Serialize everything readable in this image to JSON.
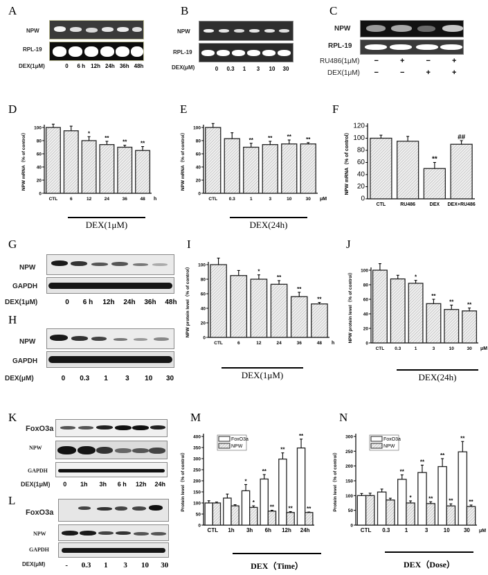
{
  "panels": {
    "A": {
      "letter": "A",
      "rows": [
        "NPW",
        "RPL-19"
      ],
      "treatment": "DEX(1μM)",
      "lanes": [
        "0",
        "6 h",
        "12h",
        "24h",
        "36h",
        "48h"
      ]
    },
    "B": {
      "letter": "B",
      "rows": [
        "NPW",
        "RPL-19"
      ],
      "treatment": "DEX(μM)",
      "lanes": [
        "0",
        "0.3",
        "1",
        "3",
        "10",
        "30"
      ]
    },
    "C": {
      "letter": "C",
      "rows": [
        "NPW",
        "RPL-19"
      ],
      "treatments": [
        {
          "label": "RU486(1μM)",
          "values": [
            "−",
            "+",
            "−",
            "+"
          ]
        },
        {
          "label": "DEX(1μM)",
          "values": [
            "−",
            "−",
            "+",
            "+"
          ]
        }
      ]
    },
    "D": {
      "letter": "D",
      "condition": "DEX(1μM)"
    },
    "E": {
      "letter": "E",
      "condition": "DEX(24h)"
    },
    "F": {
      "letter": "F"
    },
    "G": {
      "letter": "G",
      "rows": [
        "NPW",
        "GAPDH"
      ],
      "treatment": "DEX(1μM)",
      "lanes": [
        "0",
        "6 h",
        "12h",
        "24h",
        "36h",
        "48h"
      ]
    },
    "H": {
      "letter": "H",
      "rows": [
        "NPW",
        "GAPDH"
      ],
      "treatment": "DEX(μM)",
      "lanes": [
        "0",
        "0.3",
        "1",
        "3",
        "10",
        "30"
      ]
    },
    "I": {
      "letter": "I",
      "condition": "DEX(1μM)"
    },
    "J": {
      "letter": "J",
      "condition": "DEX(24h)"
    },
    "K": {
      "letter": "K",
      "rows": [
        "FoxO3a",
        "NPW",
        "GAPDH"
      ],
      "treatment": "DEX(1μM)",
      "lanes": [
        "0",
        "1h",
        "3h",
        "6 h",
        "12h",
        "24h"
      ]
    },
    "L": {
      "letter": "L",
      "rows": [
        "FoxO3a",
        "NPW",
        "GAPDH"
      ],
      "treatment": "DEX(μM)",
      "lanes": [
        "-",
        "0.3",
        "1",
        "3",
        "10",
        "30"
      ]
    },
    "M": {
      "letter": "M",
      "condition": "DEX（Time）"
    },
    "N": {
      "letter": "N",
      "condition": "DEX（Dose）"
    }
  },
  "chart_data": [
    {
      "id": "D",
      "type": "bar",
      "categories": [
        "CTL",
        "6",
        "12",
        "24",
        "36",
        "48"
      ],
      "unit_suffix": "h",
      "values": [
        100,
        95,
        80,
        74,
        70,
        65
      ],
      "errors": [
        5,
        7,
        6,
        5,
        3,
        6
      ],
      "sig": [
        "",
        "",
        "*",
        "**",
        "**",
        "**"
      ],
      "ylabel": "NPW mRNA（% of control）",
      "ylim": [
        0,
        100
      ],
      "yticks": [
        0,
        20,
        40,
        60,
        80,
        100
      ],
      "xlabel": "DEX(1μM)"
    },
    {
      "id": "E",
      "type": "bar",
      "categories": [
        "CTL",
        "0.3",
        "1",
        "3",
        "10",
        "30"
      ],
      "unit_suffix": "μM",
      "values": [
        100,
        83,
        70,
        74,
        75,
        75
      ],
      "errors": [
        6,
        9,
        6,
        5,
        6,
        2
      ],
      "sig": [
        "",
        "",
        "**",
        "**",
        "**",
        "**"
      ],
      "ylabel": "NPW mRNA（% of control）",
      "ylim": [
        0,
        100
      ],
      "yticks": [
        0,
        20,
        40,
        60,
        80,
        100
      ],
      "xlabel": "DEX(24h)"
    },
    {
      "id": "F",
      "type": "bar",
      "categories": [
        "CTL",
        "RU486",
        "DEX",
        "DEX+RU486"
      ],
      "unit_suffix": "",
      "values": [
        100,
        95,
        50,
        90
      ],
      "errors": [
        5,
        8,
        10,
        6
      ],
      "sig": [
        "",
        "",
        "**",
        "##"
      ],
      "ylabel": "NPW mRNA（% of control）",
      "ylim": [
        0,
        120
      ],
      "yticks": [
        0,
        20,
        40,
        60,
        80,
        100,
        120
      ]
    },
    {
      "id": "I",
      "type": "bar",
      "categories": [
        "CTL",
        "6",
        "12",
        "24",
        "36",
        "48"
      ],
      "unit_suffix": "h",
      "values": [
        100,
        85,
        80,
        73,
        56,
        46
      ],
      "errors": [
        9,
        7,
        6,
        5,
        6,
        2
      ],
      "sig": [
        "",
        "",
        "*",
        "**",
        "**",
        "**"
      ],
      "ylabel": "NPW protein level（% of control）",
      "ylim": [
        0,
        100
      ],
      "yticks": [
        0,
        20,
        40,
        60,
        80,
        100
      ],
      "xlabel": "DEX(1μM)"
    },
    {
      "id": "J",
      "type": "bar",
      "categories": [
        "CTL",
        "0.3",
        "1",
        "3",
        "10",
        "30"
      ],
      "unit_suffix": "μM",
      "values": [
        100,
        88,
        82,
        54,
        46,
        44
      ],
      "errors": [
        9,
        5,
        4,
        6,
        6,
        4
      ],
      "sig": [
        "",
        "",
        "*",
        "**",
        "**",
        "**"
      ],
      "ylabel": "NPW protein level（% of control）",
      "ylim": [
        0,
        100
      ],
      "yticks": [
        0,
        20,
        40,
        60,
        80,
        100
      ],
      "xlabel": "DEX(24h)"
    },
    {
      "id": "M",
      "type": "bar",
      "categories": [
        "CTL",
        "1h",
        "3h",
        "6h",
        "12h",
        "24h"
      ],
      "unit_suffix": "",
      "series": [
        {
          "name": "FoxO3a",
          "values": [
            100,
            122,
            155,
            208,
            298,
            348
          ],
          "errors": [
            10,
            18,
            28,
            20,
            28,
            40
          ],
          "sig": [
            "",
            "",
            "*",
            "**",
            "**",
            "**"
          ]
        },
        {
          "name": "NPW",
          "values": [
            100,
            87,
            80,
            63,
            57,
            57
          ],
          "errors": [
            4,
            5,
            7,
            4,
            4,
            2
          ],
          "sig": [
            "",
            "",
            "*",
            "**",
            "**",
            "**"
          ]
        }
      ],
      "ylabel": "Protein level（% of control）",
      "ylim": [
        0,
        400
      ],
      "yticks": [
        0,
        50,
        100,
        150,
        200,
        250,
        300,
        350,
        400
      ],
      "xlabel": "DEX（Time）",
      "legend_position": "top-left"
    },
    {
      "id": "N",
      "type": "bar",
      "categories": [
        "CTL",
        "0.3",
        "1",
        "3",
        "10",
        "30"
      ],
      "unit_suffix": "μM",
      "series": [
        {
          "name": "FoxO3a",
          "values": [
            100,
            112,
            155,
            178,
            198,
            248
          ],
          "errors": [
            7,
            10,
            15,
            25,
            27,
            35
          ],
          "sig": [
            "",
            "",
            "**",
            "**",
            "**",
            "**"
          ]
        },
        {
          "name": "NPW",
          "values": [
            100,
            85,
            75,
            73,
            65,
            63
          ],
          "errors": [
            8,
            6,
            7,
            6,
            7,
            5
          ],
          "sig": [
            "",
            "",
            "*",
            "**",
            "**",
            "**"
          ]
        }
      ],
      "ylabel": "Protein level（% of control）",
      "ylim": [
        0,
        300
      ],
      "yticks": [
        0,
        50,
        100,
        150,
        200,
        250,
        300
      ],
      "xlabel": "DEX（Dose）",
      "legend_position": "top-left"
    }
  ]
}
